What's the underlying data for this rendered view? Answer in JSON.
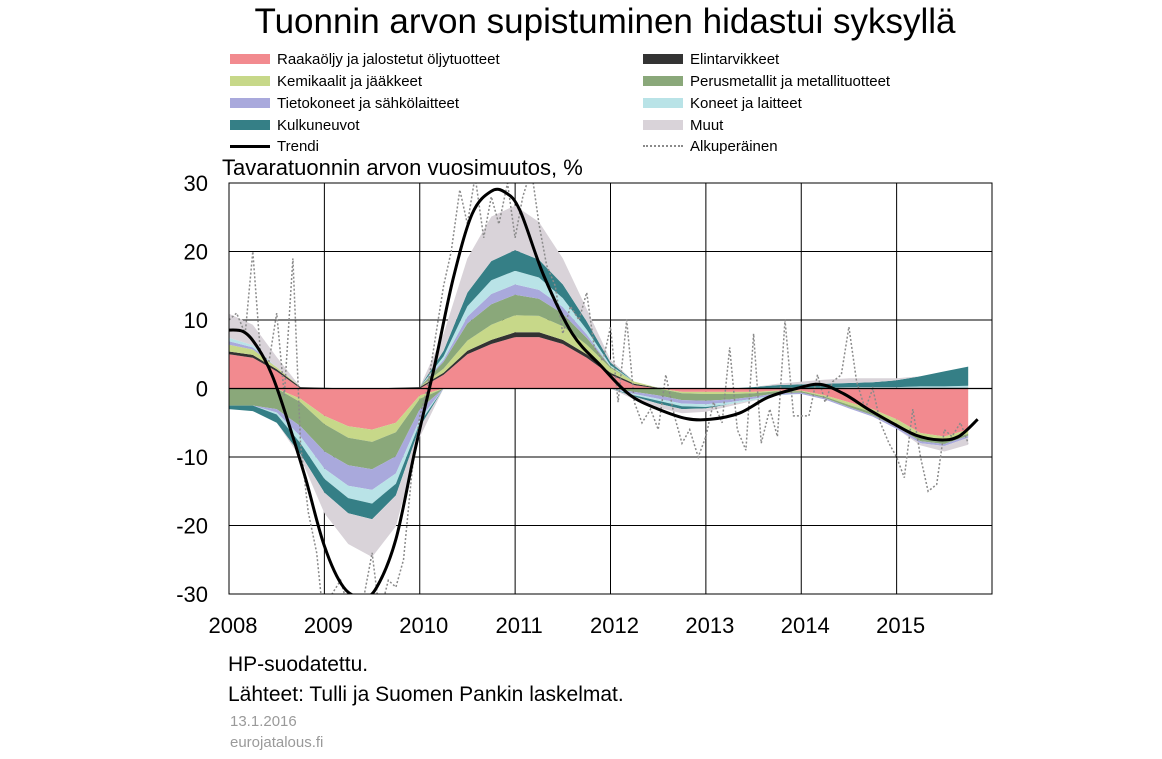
{
  "chart_data": {
    "type": "area",
    "title": "Tuonnin arvon supistuminen hidastui syksyllä",
    "ylabel": "Tavaratuonnin  arvon vuosimuutos, %",
    "xlabel": "",
    "ylim": [
      -30,
      30
    ],
    "yticks": [
      30,
      20,
      10,
      0,
      -10,
      -20,
      -30
    ],
    "xticks": [
      "2008",
      "2009",
      "2010",
      "2011",
      "2012",
      "2013",
      "2014",
      "2015"
    ],
    "grid": true,
    "legend_position": "top",
    "x": [
      2008.0,
      2008.25,
      2008.5,
      2008.75,
      2009.0,
      2009.25,
      2009.5,
      2009.75,
      2010.0,
      2010.25,
      2010.5,
      2010.75,
      2011.0,
      2011.25,
      2011.5,
      2011.75,
      2012.0,
      2012.25,
      2012.5,
      2012.75,
      2013.0,
      2013.25,
      2013.5,
      2013.75,
      2014.0,
      2014.25,
      2014.5,
      2014.75,
      2015.0,
      2015.25,
      2015.5,
      2015.75
    ],
    "series": [
      {
        "name": "Raakaöljy ja jalostetut öljytuotteet",
        "color": "#f28a8f",
        "values": [
          5,
          4.5,
          2.5,
          -1.5,
          -4,
          -5.5,
          -6,
          -5,
          -1,
          2,
          5,
          6.5,
          7.5,
          7.5,
          6.5,
          4.5,
          2,
          0.5,
          0,
          -0.5,
          -0.5,
          -0.5,
          -0.5,
          -0.3,
          -0.3,
          -1,
          -2,
          -3,
          -4.5,
          -6.5,
          -7,
          -6
        ]
      },
      {
        "name": "Elintarvikkeet",
        "color": "#333333",
        "values": [
          0.4,
          0.4,
          0.3,
          0.2,
          0.1,
          0.0,
          0.0,
          0.1,
          0.2,
          0.3,
          0.5,
          0.6,
          0.7,
          0.7,
          0.6,
          0.5,
          0.3,
          0.2,
          0.1,
          0.0,
          0.0,
          0.0,
          0.0,
          0.1,
          0.1,
          0.1,
          0.1,
          0.1,
          0.1,
          0.1,
          0.1,
          0.1
        ]
      },
      {
        "name": "Kemikaalit ja jääkkeet",
        "color": "#c7d889",
        "values": [
          1,
          0.8,
          0.3,
          -0.5,
          -1.2,
          -1.7,
          -1.8,
          -1.4,
          -0.5,
          0.6,
          1.5,
          2.2,
          2.5,
          2.4,
          2,
          1.4,
          0.7,
          0.3,
          0,
          -0.2,
          -0.3,
          -0.3,
          -0.2,
          -0.1,
          -0.1,
          -0.2,
          -0.4,
          -0.5,
          -0.6,
          -0.7,
          -0.7,
          -0.6
        ]
      },
      {
        "name": "Perusmetallit ja metallituotteet",
        "color": "#8aa87a",
        "values": [
          -2.5,
          -2.5,
          -3,
          -3.5,
          -4,
          -4,
          -4,
          -3.5,
          -1.5,
          1,
          2.5,
          3,
          3,
          2.5,
          1.8,
          1,
          0.2,
          -0.5,
          -1,
          -1,
          -1,
          -0.8,
          -0.5,
          -0.3,
          -0.2,
          -0.2,
          -0.3,
          -0.4,
          -0.5,
          -0.5,
          -0.4,
          -0.3
        ]
      },
      {
        "name": "Tietokoneet ja sähkölaitteet",
        "color": "#a9a9dc",
        "values": [
          0.5,
          0.3,
          -0.5,
          -1.5,
          -2.5,
          -3,
          -3,
          -2.5,
          -1.5,
          0.3,
          1,
          1.5,
          1.5,
          1.3,
          1,
          0.5,
          0,
          -0.3,
          -0.5,
          -0.5,
          -0.5,
          -0.4,
          -0.3,
          -0.2,
          -0.2,
          -0.2,
          -0.2,
          -0.2,
          -0.3,
          -0.3,
          -0.3,
          -0.3
        ]
      },
      {
        "name": "Koneet ja laitteet",
        "color": "#b9e3e7",
        "values": [
          0.5,
          0.3,
          -0.3,
          -1,
          -1.5,
          -1.8,
          -2,
          -1.5,
          -0.5,
          0.5,
          1.5,
          2,
          2,
          1.8,
          1.3,
          0.7,
          0.2,
          -0.2,
          -0.3,
          -0.4,
          -0.4,
          -0.3,
          -0.2,
          -0.1,
          0,
          0,
          0.1,
          0.1,
          0.1,
          0.2,
          0.2,
          0.3
        ]
      },
      {
        "name": "Kulkuneuvot",
        "color": "#357f86",
        "values": [
          -0.5,
          -0.8,
          -1.2,
          -1.6,
          -2,
          -2.2,
          -2.3,
          -1.7,
          -0.6,
          0.8,
          2,
          2.8,
          3,
          2.6,
          2,
          1.2,
          0.4,
          -0.2,
          -0.4,
          -0.4,
          -0.2,
          0,
          0.2,
          0.4,
          0.5,
          0.6,
          0.6,
          0.7,
          1,
          1.5,
          2.2,
          2.8
        ]
      },
      {
        "name": "Muut",
        "color": "#d9d3d9",
        "values": [
          3.5,
          3,
          1.5,
          -0.5,
          -3,
          -4.5,
          -5.5,
          -4.5,
          -1.5,
          2.5,
          5,
          6.5,
          6.5,
          5.5,
          3.8,
          1.8,
          0.4,
          -0.4,
          -0.6,
          -0.6,
          -0.5,
          -0.3,
          -0.1,
          0.2,
          0.4,
          0.6,
          0.7,
          0.6,
          0.3,
          -0.3,
          -0.8,
          -1
        ]
      }
    ],
    "trend": {
      "name": "Trendi",
      "color": "#000000",
      "x": [
        2007.95,
        2008.15,
        2008.3,
        2008.45,
        2008.6,
        2008.8,
        2009.0,
        2009.2,
        2009.4,
        2009.55,
        2009.75,
        2009.95,
        2010.15,
        2010.35,
        2010.55,
        2010.75,
        2010.9,
        2011.05,
        2011.3,
        2011.6,
        2011.9,
        2012.2,
        2012.5,
        2012.8,
        2013.05,
        2013.35,
        2013.65,
        2013.95,
        2014.2,
        2014.45,
        2014.7,
        2014.95,
        2015.2,
        2015.45,
        2015.65,
        2015.85
      ],
      "y": [
        8.5,
        8.3,
        6,
        2,
        -4,
        -13,
        -23,
        -29,
        -30.5,
        -29,
        -22,
        -9,
        3,
        16,
        25.5,
        28.8,
        28.6,
        26,
        16.5,
        8,
        3.3,
        -0.9,
        -3,
        -4.4,
        -4.5,
        -3.6,
        -1.3,
        0,
        0.6,
        -0.8,
        -3,
        -5,
        -6.8,
        -7.5,
        -7,
        -4.5
      ]
    },
    "original": {
      "name": "Alkuperäinen",
      "color": "#8a8a8a",
      "x": [
        2008.0,
        2008.08,
        2008.17,
        2008.25,
        2008.33,
        2008.42,
        2008.5,
        2008.58,
        2008.67,
        2008.75,
        2008.83,
        2008.92,
        2009.0,
        2009.08,
        2009.17,
        2009.25,
        2009.33,
        2009.42,
        2009.5,
        2009.58,
        2009.67,
        2009.75,
        2009.83,
        2009.92,
        2010.0,
        2010.08,
        2010.17,
        2010.25,
        2010.33,
        2010.42,
        2010.5,
        2010.58,
        2010.67,
        2010.75,
        2010.83,
        2010.92,
        2011.0,
        2011.08,
        2011.17,
        2011.25,
        2011.33,
        2011.42,
        2011.5,
        2011.58,
        2011.67,
        2011.75,
        2011.83,
        2011.92,
        2012.0,
        2012.08,
        2012.17,
        2012.25,
        2012.33,
        2012.42,
        2012.5,
        2012.58,
        2012.67,
        2012.75,
        2012.83,
        2012.92,
        2013.0,
        2013.08,
        2013.17,
        2013.25,
        2013.33,
        2013.42,
        2013.5,
        2013.58,
        2013.67,
        2013.75,
        2013.83,
        2013.92,
        2014.0,
        2014.08,
        2014.17,
        2014.25,
        2014.33,
        2014.42,
        2014.5,
        2014.58,
        2014.67,
        2014.75,
        2014.83,
        2014.92,
        2015.0,
        2015.08,
        2015.17,
        2015.25,
        2015.33,
        2015.42,
        2015.5,
        2015.58,
        2015.67,
        2015.75
      ],
      "y": [
        10,
        11,
        8,
        20,
        5,
        4,
        11,
        -1,
        19,
        -8,
        -18,
        -24,
        -35,
        -30,
        -28,
        -32,
        -31,
        -30,
        -24,
        -33,
        -28,
        -29,
        -25,
        -12,
        -4,
        0,
        8,
        15,
        20,
        29,
        24,
        31,
        22,
        28,
        24,
        30,
        22,
        28,
        32,
        24,
        18,
        15,
        8,
        12,
        10,
        14,
        6,
        4,
        9,
        -2,
        10,
        -2,
        -5,
        -3,
        -6,
        2,
        -4,
        -8,
        -6,
        -10,
        -7,
        -2,
        -5,
        6,
        -6,
        -9,
        8,
        -8,
        -3,
        -7,
        10,
        -4,
        -4,
        -4,
        2,
        -2,
        1,
        2,
        9,
        1,
        -3,
        0,
        -5,
        -8,
        -10,
        -13,
        -3,
        -10,
        -15,
        -14,
        -6,
        -7,
        -5,
        -8
      ]
    },
    "legend": [
      {
        "label": "Raakaöljy ja jalostetut öljytuotteet",
        "kind": "fill",
        "color": "#f28a8f"
      },
      {
        "label": "Elintarvikkeet",
        "kind": "fill",
        "color": "#333333"
      },
      {
        "label": "Kemikaalit ja jääkkeet",
        "kind": "fill",
        "color": "#c7d889"
      },
      {
        "label": "Perusmetallit ja metallituotteet",
        "kind": "fill",
        "color": "#8aa87a"
      },
      {
        "label": "Tietokoneet ja sähkölaitteet",
        "kind": "fill",
        "color": "#a9a9dc"
      },
      {
        "label": "Koneet ja laitteet",
        "kind": "fill",
        "color": "#b9e3e7"
      },
      {
        "label": "Kulkuneuvot",
        "kind": "fill",
        "color": "#357f86"
      },
      {
        "label": "Muut",
        "kind": "fill",
        "color": "#d9d3d9"
      },
      {
        "label": "Trendi",
        "kind": "line",
        "color": "#000000"
      },
      {
        "label": "Alkuperäinen",
        "kind": "dotted",
        "color": "#8a8a8a"
      }
    ]
  },
  "notes": {
    "filter": "HP-suodatettu.",
    "source": "Lähteet: Tulli ja Suomen Pankin laskelmat.",
    "date": "13.1.2016",
    "site": "eurojatalous.fi"
  }
}
